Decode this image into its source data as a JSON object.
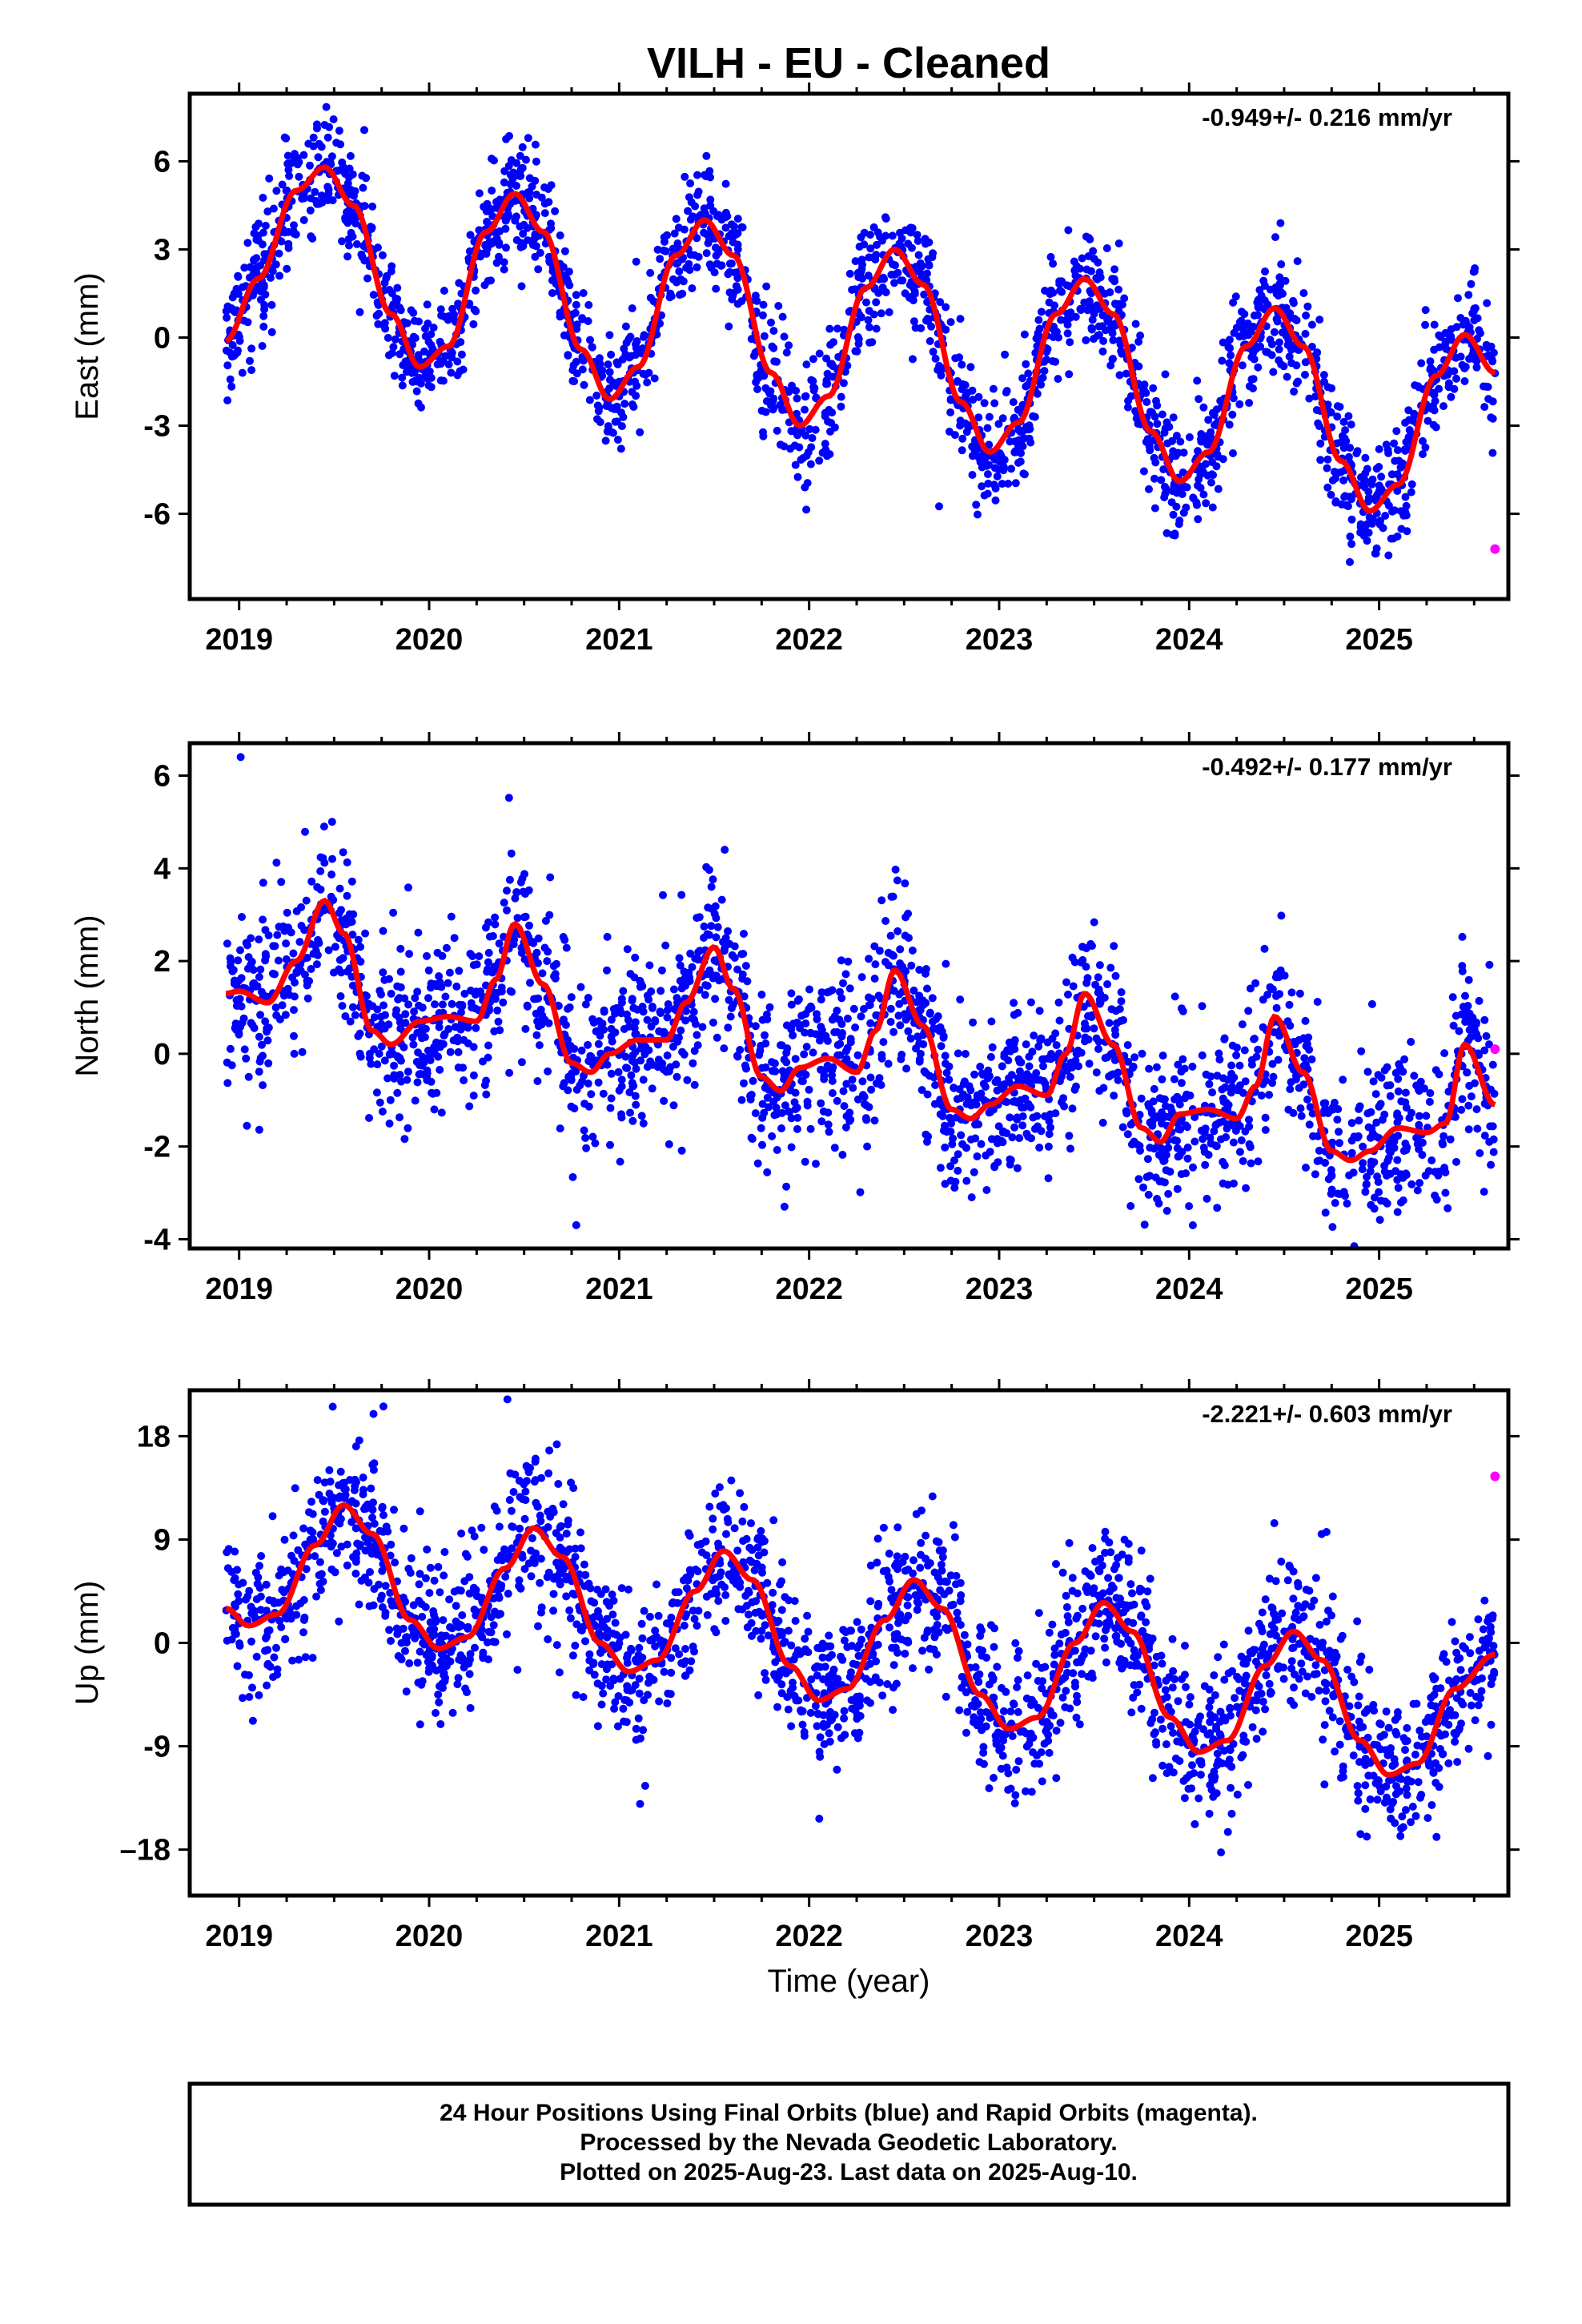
{
  "title": "VILH  - EU - Cleaned",
  "xlabel": "Time (year)",
  "colors": {
    "final": "#0000ff",
    "rapid": "#ff00ff",
    "model": "#ff0000",
    "frame": "#000000"
  },
  "footer": {
    "line1": "24 Hour Positions Using Final Orbits (blue) and Rapid Orbits (magenta).",
    "line2": "Processed by the Nevada Geodetic Laboratory.",
    "line3": "Plotted on 2025-Aug-23. Last data on 2025-Aug-10."
  },
  "chart_data": [
    {
      "type": "scatter",
      "ylabel": "East (mm)",
      "rate": "-0.949+/- 0.216 mm/yr",
      "xlim": [
        2018.74,
        2025.68
      ],
      "ylim": [
        -8.9,
        8.3
      ],
      "xticks": [
        2019,
        2020,
        2021,
        2022,
        2023,
        2024,
        2025
      ],
      "xtick_labels": [
        "2019",
        "2020",
        "2021",
        "2022",
        "2023",
        "2024",
        "2025"
      ],
      "yticks": [
        -6,
        -3,
        0,
        3,
        6
      ],
      "ytick_labels": [
        "-6",
        "-3",
        "0",
        "3",
        "6"
      ],
      "model": {
        "name": "model fit",
        "x": [
          2018.93,
          2019.1,
          2019.3,
          2019.45,
          2019.6,
          2019.8,
          2019.95,
          2020.1,
          2020.3,
          2020.45,
          2020.6,
          2020.8,
          2020.95,
          2021.1,
          2021.3,
          2021.45,
          2021.6,
          2021.8,
          2021.95,
          2022.1,
          2022.3,
          2022.45,
          2022.6,
          2022.8,
          2022.95,
          2023.1,
          2023.3,
          2023.45,
          2023.6,
          2023.8,
          2023.95,
          2024.1,
          2024.3,
          2024.45,
          2024.6,
          2024.8,
          2024.95,
          2025.1,
          2025.3,
          2025.45,
          2025.61
        ],
        "y": [
          -0.1,
          2.0,
          5.0,
          5.8,
          4.5,
          0.8,
          -1.0,
          -0.3,
          3.6,
          4.9,
          3.6,
          -0.4,
          -2.1,
          -1.0,
          2.8,
          4.0,
          2.8,
          -1.2,
          -3.0,
          -2.0,
          1.7,
          3.0,
          1.8,
          -2.2,
          -3.9,
          -2.9,
          0.8,
          2.0,
          0.8,
          -3.2,
          -4.9,
          -3.9,
          -0.3,
          1.0,
          -0.3,
          -4.2,
          -5.9,
          -5.0,
          -1.3,
          0.1,
          -1.2
        ]
      },
      "scatter_spread": 1.0,
      "rapid_points": [
        {
          "x": 2025.61,
          "y": -7.2
        }
      ]
    },
    {
      "type": "scatter",
      "ylabel": "North (mm)",
      "rate": "-0.492+/- 0.177 mm/yr",
      "xlim": [
        2018.74,
        2025.68
      ],
      "ylim": [
        -4.2,
        6.7
      ],
      "xticks": [
        2019,
        2020,
        2021,
        2022,
        2023,
        2024,
        2025
      ],
      "xtick_labels": [
        "2019",
        "2020",
        "2021",
        "2022",
        "2023",
        "2024",
        "2025"
      ],
      "yticks": [
        -4,
        -2,
        0,
        2,
        4,
        6
      ],
      "ytick_labels": [
        "-4",
        "-2",
        "0",
        "2",
        "4",
        "6"
      ],
      "model": {
        "name": "model fit",
        "x": [
          2018.93,
          2019.0,
          2019.15,
          2019.3,
          2019.45,
          2019.55,
          2019.7,
          2019.8,
          2019.95,
          2020.1,
          2020.25,
          2020.35,
          2020.45,
          2020.6,
          2020.75,
          2020.85,
          2020.95,
          2021.1,
          2021.25,
          2021.35,
          2021.5,
          2021.6,
          2021.75,
          2021.85,
          2021.95,
          2022.1,
          2022.25,
          2022.35,
          2022.45,
          2022.6,
          2022.75,
          2022.85,
          2022.95,
          2023.1,
          2023.25,
          2023.35,
          2023.45,
          2023.6,
          2023.75,
          2023.85,
          2023.95,
          2024.1,
          2024.25,
          2024.35,
          2024.45,
          2024.6,
          2024.75,
          2024.85,
          2024.95,
          2025.1,
          2025.25,
          2025.35,
          2025.45,
          2025.61
        ],
        "y": [
          1.3,
          1.35,
          1.1,
          2.0,
          3.3,
          2.6,
          0.5,
          0.2,
          0.7,
          0.8,
          0.7,
          1.6,
          2.8,
          1.5,
          -0.2,
          -0.4,
          0.0,
          0.3,
          0.3,
          1.1,
          2.3,
          1.4,
          -0.5,
          -0.8,
          -0.3,
          -0.1,
          -0.4,
          0.5,
          1.8,
          0.6,
          -1.2,
          -1.4,
          -1.1,
          -0.7,
          -0.9,
          0.0,
          1.3,
          0.2,
          -1.6,
          -1.9,
          -1.3,
          -1.2,
          -1.4,
          -0.7,
          0.8,
          -0.4,
          -2.1,
          -2.3,
          -2.1,
          -1.6,
          -1.7,
          -1.5,
          0.2,
          -1.1
        ]
      },
      "scatter_spread": 0.9,
      "rapid_points": [
        {
          "x": 2025.61,
          "y": 0.1
        }
      ]
    },
    {
      "type": "scatter",
      "ylabel": "Up (mm)",
      "rate": "-2.221+/- 0.603 mm/yr",
      "xlim": [
        2018.74,
        2025.68
      ],
      "ylim": [
        -22,
        22
      ],
      "xticks": [
        2019,
        2020,
        2021,
        2022,
        2023,
        2024,
        2025
      ],
      "xtick_labels": [
        "2019",
        "2020",
        "2021",
        "2022",
        "2023",
        "2024",
        "2025"
      ],
      "yticks": [
        -18,
        -9,
        0,
        9,
        18
      ],
      "ytick_labels": [
        "–18",
        "-9",
        "0",
        "9",
        "18"
      ],
      "model": {
        "name": "model fit",
        "x": [
          2018.93,
          2019.05,
          2019.2,
          2019.4,
          2019.55,
          2019.7,
          2019.9,
          2020.05,
          2020.2,
          2020.4,
          2020.55,
          2020.7,
          2020.9,
          2021.05,
          2021.2,
          2021.4,
          2021.55,
          2021.7,
          2021.9,
          2022.05,
          2022.2,
          2022.4,
          2022.55,
          2022.7,
          2022.9,
          2023.05,
          2023.2,
          2023.4,
          2023.55,
          2023.7,
          2023.9,
          2024.05,
          2024.2,
          2024.4,
          2024.55,
          2024.7,
          2024.9,
          2025.05,
          2025.2,
          2025.4,
          2025.61
        ],
        "y": [
          3.0,
          1.5,
          2.5,
          8.5,
          12.0,
          9.5,
          2.0,
          -0.5,
          0.5,
          6.5,
          10.0,
          7.5,
          0.0,
          -2.5,
          -1.5,
          4.5,
          8.0,
          5.5,
          -2.0,
          -5.0,
          -4.0,
          2.0,
          5.5,
          3.0,
          -4.5,
          -7.5,
          -6.5,
          0.0,
          3.5,
          1.0,
          -6.5,
          -9.5,
          -8.5,
          -2.0,
          1.0,
          -1.5,
          -8.5,
          -11.5,
          -10.5,
          -4.0,
          -1.0
        ]
      },
      "scatter_spread": 3.3,
      "rapid_points": [
        {
          "x": 2025.61,
          "y": 14.5
        }
      ]
    }
  ]
}
